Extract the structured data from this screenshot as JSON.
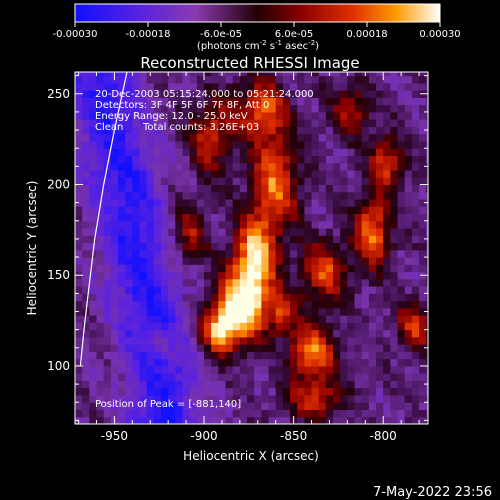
{
  "chart_data": {
    "type": "heatmap",
    "title": "Reconstructed RHESSI Image",
    "xlabel": "Heliocentric X (arcsec)",
    "ylabel": "Heliocentric Y (arcsec)",
    "xlim": [
      -972,
      -775
    ],
    "ylim": [
      68,
      262
    ],
    "x_ticks": [
      -950,
      -900,
      -850,
      -800
    ],
    "y_ticks": [
      100,
      150,
      200,
      250
    ],
    "colorbar": {
      "min": -0.0003,
      "max": 0.0003,
      "ticks": [
        "-0.00030",
        "-0.00018",
        "-6.0e-05",
        "6.0e-05",
        "0.00018",
        "0.00030"
      ],
      "units_label": "(photons cm",
      "units_exp1": "-2",
      "units_mid": " s",
      "units_exp2": "-1",
      "units_mid2": " asec",
      "units_exp3": "-2",
      "units_end": ")"
    },
    "annotations": {
      "line1": "20-Dec-2003 05:15:24.000 to 05:21:24.000",
      "line2": "Detectors: 3F 4F 5F 6F 7F 8F, Att 0",
      "line3": "Energy Range: 12.0 - 25.0 keV",
      "line4_a": "Clean",
      "line4_b": "Total counts: 3.26E+03",
      "peak": "Position of Peak = [-881,140]"
    },
    "peak_position": [
      -881,
      140
    ],
    "limb": [
      [
        -943,
        262
      ],
      [
        -950,
        230
      ],
      [
        -956,
        200
      ],
      [
        -961,
        170
      ],
      [
        -964,
        145
      ],
      [
        -967,
        120
      ],
      [
        -969,
        100
      ]
    ],
    "blobs": [
      {
        "x": -880,
        "y": 133,
        "sx": 10,
        "sy": 14,
        "a": 1.0
      },
      {
        "x": -893,
        "y": 118,
        "sx": 8,
        "sy": 9,
        "a": 0.8
      },
      {
        "x": -873,
        "y": 160,
        "sx": 8,
        "sy": 15,
        "a": 0.85
      },
      {
        "x": -862,
        "y": 200,
        "sx": 9,
        "sy": 18,
        "a": 0.7
      },
      {
        "x": -870,
        "y": 240,
        "sx": 10,
        "sy": 12,
        "a": 0.65
      },
      {
        "x": -898,
        "y": 225,
        "sx": 8,
        "sy": 14,
        "a": 0.55
      },
      {
        "x": -910,
        "y": 172,
        "sx": 7,
        "sy": 12,
        "a": 0.45
      },
      {
        "x": -842,
        "y": 106,
        "sx": 9,
        "sy": 10,
        "a": 0.75
      },
      {
        "x": -840,
        "y": 80,
        "sx": 10,
        "sy": 8,
        "a": 0.55
      },
      {
        "x": -835,
        "y": 150,
        "sx": 9,
        "sy": 12,
        "a": 0.6
      },
      {
        "x": -808,
        "y": 172,
        "sx": 7,
        "sy": 14,
        "a": 0.75
      },
      {
        "x": -800,
        "y": 210,
        "sx": 7,
        "sy": 10,
        "a": 0.6
      },
      {
        "x": -785,
        "y": 120,
        "sx": 7,
        "sy": 9,
        "a": 0.55
      },
      {
        "x": -820,
        "y": 240,
        "sx": 8,
        "sy": 10,
        "a": 0.45
      },
      {
        "x": -925,
        "y": 110,
        "sx": 6,
        "sy": 6,
        "a": 0.3
      },
      {
        "x": -858,
        "y": 128,
        "sx": 6,
        "sy": 8,
        "a": 0.5
      }
    ],
    "negative_band": {
      "x0": -960,
      "y0": 262,
      "x1": -925,
      "y1": 90,
      "width": 14,
      "a": 0.9
    }
  },
  "timestamp": "7-May-2022 23:56"
}
